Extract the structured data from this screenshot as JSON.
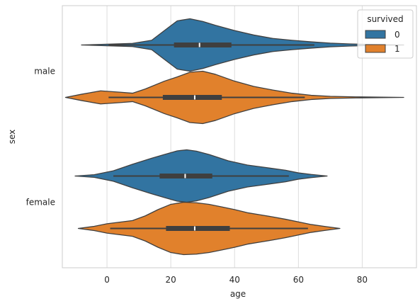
{
  "chart_data": {
    "type": "violin",
    "orientation": "horizontal",
    "xlabel": "age",
    "ylabel": "sex",
    "categories": [
      "male",
      "female"
    ],
    "xlim": [
      -14,
      97
    ],
    "xticks": [
      0,
      20,
      40,
      60,
      80
    ],
    "grid": true,
    "legend": {
      "title": "survived",
      "placement": "top-right",
      "entries": [
        "0",
        "1"
      ]
    },
    "colors": {
      "0": "#3274a1",
      "1": "#e1812c"
    },
    "series": [
      {
        "name": "0",
        "violins": [
          {
            "category": "male",
            "min": -8,
            "max": 93,
            "q1": 21,
            "median": 29,
            "q3": 39,
            "whisker_low": 0.5,
            "whisker_high": 65,
            "profile": [
              [
                -8,
                0.0
              ],
              [
                0,
                0.03
              ],
              [
                8,
                0.06
              ],
              [
                14,
                0.18
              ],
              [
                18,
                0.55
              ],
              [
                22,
                0.92
              ],
              [
                26,
                1.0
              ],
              [
                30,
                0.9
              ],
              [
                34,
                0.75
              ],
              [
                40,
                0.55
              ],
              [
                46,
                0.38
              ],
              [
                52,
                0.25
              ],
              [
                58,
                0.18
              ],
              [
                64,
                0.12
              ],
              [
                70,
                0.07
              ],
              [
                76,
                0.04
              ],
              [
                82,
                0.02
              ],
              [
                88,
                0.005
              ],
              [
                93,
                0.0
              ]
            ]
          },
          {
            "category": "female",
            "min": -10,
            "max": 69,
            "q1": 16.5,
            "median": 24.5,
            "q3": 33,
            "whisker_low": 2,
            "whisker_high": 57,
            "profile": [
              [
                -10,
                0.0
              ],
              [
                -4,
                0.05
              ],
              [
                2,
                0.2
              ],
              [
                8,
                0.45
              ],
              [
                14,
                0.68
              ],
              [
                18,
                0.82
              ],
              [
                22,
                0.96
              ],
              [
                25,
                1.0
              ],
              [
                28,
                0.95
              ],
              [
                32,
                0.82
              ],
              [
                38,
                0.58
              ],
              [
                44,
                0.42
              ],
              [
                50,
                0.32
              ],
              [
                56,
                0.22
              ],
              [
                60,
                0.12
              ],
              [
                64,
                0.06
              ],
              [
                69,
                0.0
              ]
            ]
          }
        ]
      },
      {
        "name": "1",
        "violins": [
          {
            "category": "male",
            "min": -13,
            "max": 93,
            "q1": 17.5,
            "median": 27.5,
            "q3": 36,
            "whisker_low": 0.5,
            "whisker_high": 62,
            "profile": [
              [
                -13,
                0.0
              ],
              [
                -8,
                0.12
              ],
              [
                -2,
                0.25
              ],
              [
                4,
                0.2
              ],
              [
                8,
                0.16
              ],
              [
                12,
                0.32
              ],
              [
                18,
                0.62
              ],
              [
                22,
                0.78
              ],
              [
                26,
                0.96
              ],
              [
                30,
                1.0
              ],
              [
                34,
                0.88
              ],
              [
                40,
                0.62
              ],
              [
                46,
                0.42
              ],
              [
                52,
                0.28
              ],
              [
                58,
                0.16
              ],
              [
                64,
                0.08
              ],
              [
                70,
                0.04
              ],
              [
                78,
                0.02
              ],
              [
                86,
                0.01
              ],
              [
                93,
                0.0
              ]
            ]
          },
          {
            "category": "female",
            "min": -9,
            "max": 73,
            "q1": 18.5,
            "median": 27.5,
            "q3": 38.5,
            "whisker_low": 1,
            "whisker_high": 63,
            "profile": [
              [
                -9,
                0.0
              ],
              [
                -4,
                0.08
              ],
              [
                0,
                0.18
              ],
              [
                4,
                0.24
              ],
              [
                8,
                0.3
              ],
              [
                12,
                0.48
              ],
              [
                16,
                0.72
              ],
              [
                20,
                0.92
              ],
              [
                24,
                1.0
              ],
              [
                28,
                0.98
              ],
              [
                32,
                0.92
              ],
              [
                36,
                0.82
              ],
              [
                40,
                0.72
              ],
              [
                44,
                0.6
              ],
              [
                48,
                0.52
              ],
              [
                52,
                0.44
              ],
              [
                56,
                0.35
              ],
              [
                60,
                0.25
              ],
              [
                64,
                0.15
              ],
              [
                68,
                0.08
              ],
              [
                73,
                0.0
              ]
            ]
          }
        ]
      }
    ]
  }
}
